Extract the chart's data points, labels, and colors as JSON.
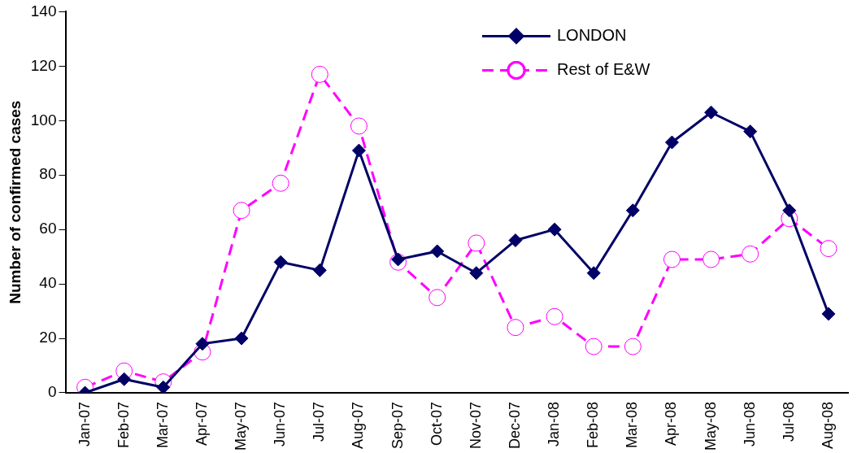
{
  "chart_data": {
    "type": "line",
    "ylabel": "Number of confirmed cases",
    "categories": [
      "Jan-07",
      "Feb-07",
      "Mar-07",
      "Apr-07",
      "May-07",
      "Jun-07",
      "Jul-07",
      "Aug-07",
      "Sep-07",
      "Oct-07",
      "Nov-07",
      "Dec-07",
      "Jan-08",
      "Feb-08",
      "Mar-08",
      "Apr-08",
      "May-08",
      "Jun-08",
      "Jul-08",
      "Aug-08"
    ],
    "series": [
      {
        "name": "LONDON",
        "color": "#000066",
        "marker": "diamond",
        "line_style": "solid",
        "values": [
          0,
          5,
          2,
          18,
          20,
          48,
          45,
          89,
          49,
          52,
          44,
          56,
          60,
          44,
          67,
          92,
          103,
          96,
          67,
          29
        ]
      },
      {
        "name": "Rest of E&W",
        "color": "#ff00ff",
        "marker": "circle",
        "line_style": "dashed",
        "values": [
          2,
          8,
          4,
          15,
          67,
          77,
          117,
          98,
          48,
          35,
          55,
          24,
          28,
          17,
          17,
          49,
          49,
          51,
          64,
          53
        ]
      }
    ],
    "ylim": [
      0,
      140
    ],
    "yticks": [
      0,
      20,
      40,
      60,
      80,
      100,
      120,
      140
    ],
    "grid": false,
    "legend": "top right"
  }
}
